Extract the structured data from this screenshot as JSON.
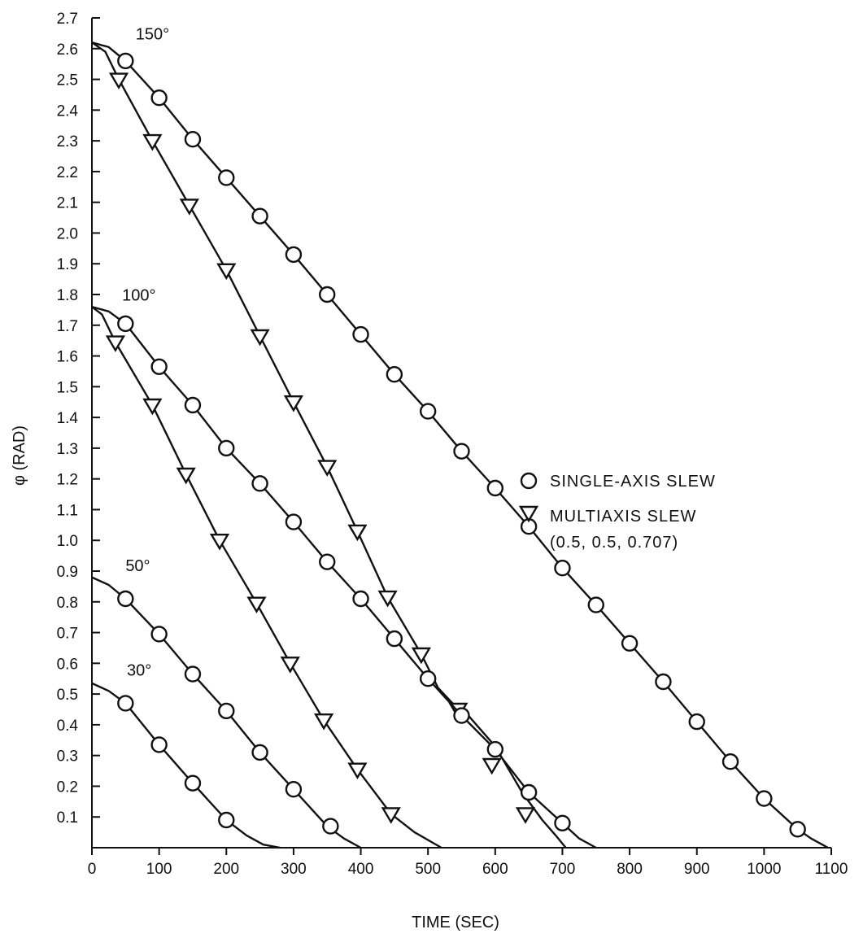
{
  "chart_data": {
    "type": "line",
    "title": "",
    "xlabel": "TIME (SEC)",
    "ylabel": "φ (RAD)",
    "xlim": [
      0,
      1100
    ],
    "ylim": [
      0,
      2.7
    ],
    "x_ticks": [
      "0",
      "100",
      "200",
      "300",
      "400",
      "500",
      "600",
      "700",
      "800",
      "900",
      "1000",
      "1100"
    ],
    "y_ticks": [
      "0.1",
      "0.2",
      "0.3",
      "0.4",
      "0.5",
      "0.6",
      "0.7",
      "0.8",
      "0.9",
      "1.0",
      "1.1",
      "1.2",
      "1.3",
      "1.4",
      "1.5",
      "1.6",
      "1.7",
      "1.8",
      "1.9",
      "2.0",
      "2.1",
      "2.2",
      "2.3",
      "2.4",
      "2.5",
      "2.6",
      "2.7"
    ],
    "legend": {
      "position": "right-middle",
      "single_label": "SINGLE-AXIS SLEW",
      "multi_label": "MULTIAXIS SLEW",
      "multi_sublabel": "(0.5, 0.5, 0.707)"
    },
    "series": [
      {
        "label": "150°",
        "label_at": [
          65,
          2.63
        ],
        "marker": "circle",
        "curve": [
          [
            0,
            2.62
          ],
          [
            25,
            2.605
          ],
          [
            50,
            2.56
          ],
          [
            100,
            2.44
          ],
          [
            150,
            2.305
          ],
          [
            200,
            2.18
          ],
          [
            250,
            2.055
          ],
          [
            300,
            1.93
          ],
          [
            350,
            1.8
          ],
          [
            400,
            1.67
          ],
          [
            450,
            1.54
          ],
          [
            500,
            1.42
          ],
          [
            550,
            1.29
          ],
          [
            600,
            1.17
          ],
          [
            650,
            1.045
          ],
          [
            700,
            0.91
          ],
          [
            750,
            0.79
          ],
          [
            800,
            0.665
          ],
          [
            850,
            0.54
          ],
          [
            900,
            0.41
          ],
          [
            950,
            0.28
          ],
          [
            1000,
            0.16
          ],
          [
            1050,
            0.06
          ],
          [
            1070,
            0.03
          ],
          [
            1095,
            0
          ]
        ],
        "points": [
          [
            50,
            2.56
          ],
          [
            100,
            2.44
          ],
          [
            150,
            2.305
          ],
          [
            200,
            2.18
          ],
          [
            250,
            2.055
          ],
          [
            300,
            1.93
          ],
          [
            350,
            1.8
          ],
          [
            400,
            1.67
          ],
          [
            450,
            1.54
          ],
          [
            500,
            1.42
          ],
          [
            550,
            1.29
          ],
          [
            600,
            1.17
          ],
          [
            650,
            1.045
          ],
          [
            700,
            0.91
          ],
          [
            750,
            0.79
          ],
          [
            800,
            0.665
          ],
          [
            850,
            0.54
          ],
          [
            900,
            0.41
          ],
          [
            950,
            0.28
          ],
          [
            1000,
            0.16
          ],
          [
            1050,
            0.06
          ]
        ]
      },
      {
        "label": "150°",
        "marker": "triangle",
        "curve": [
          [
            0,
            2.62
          ],
          [
            20,
            2.59
          ],
          [
            40,
            2.5
          ],
          [
            90,
            2.3
          ],
          [
            145,
            2.09
          ],
          [
            200,
            1.88
          ],
          [
            250,
            1.665
          ],
          [
            300,
            1.45
          ],
          [
            350,
            1.24
          ],
          [
            395,
            1.03
          ],
          [
            440,
            0.815
          ],
          [
            490,
            0.63
          ],
          [
            515,
            0.52
          ],
          [
            545,
            0.45
          ],
          [
            560,
            0.43
          ],
          [
            600,
            0.33
          ],
          [
            640,
            0.18
          ],
          [
            670,
            0.09
          ],
          [
            690,
            0.04
          ],
          [
            705,
            0
          ]
        ],
        "points": [
          [
            40,
            2.5
          ],
          [
            90,
            2.3
          ],
          [
            145,
            2.09
          ],
          [
            200,
            1.88
          ],
          [
            250,
            1.665
          ],
          [
            300,
            1.45
          ],
          [
            350,
            1.24
          ],
          [
            395,
            1.03
          ],
          [
            440,
            0.815
          ],
          [
            490,
            0.63
          ],
          [
            545,
            0.45
          ],
          [
            595,
            0.27
          ],
          [
            645,
            0.11
          ]
        ]
      },
      {
        "label": "100°",
        "label_at": [
          45,
          1.78
        ],
        "marker": "circle",
        "curve": [
          [
            0,
            1.76
          ],
          [
            25,
            1.745
          ],
          [
            50,
            1.705
          ],
          [
            100,
            1.565
          ],
          [
            150,
            1.44
          ],
          [
            200,
            1.3
          ],
          [
            250,
            1.185
          ],
          [
            300,
            1.06
          ],
          [
            350,
            0.93
          ],
          [
            400,
            0.81
          ],
          [
            450,
            0.68
          ],
          [
            500,
            0.55
          ],
          [
            550,
            0.43
          ],
          [
            600,
            0.32
          ],
          [
            650,
            0.18
          ],
          [
            700,
            0.08
          ],
          [
            725,
            0.03
          ],
          [
            750,
            0
          ]
        ],
        "points": [
          [
            50,
            1.705
          ],
          [
            100,
            1.565
          ],
          [
            150,
            1.44
          ],
          [
            200,
            1.3
          ],
          [
            250,
            1.185
          ],
          [
            300,
            1.06
          ],
          [
            350,
            0.93
          ],
          [
            400,
            0.81
          ],
          [
            450,
            0.68
          ],
          [
            500,
            0.55
          ],
          [
            550,
            0.43
          ],
          [
            600,
            0.32
          ],
          [
            650,
            0.18
          ],
          [
            700,
            0.08
          ]
        ]
      },
      {
        "label": "100°",
        "marker": "triangle",
        "curve": [
          [
            0,
            1.76
          ],
          [
            15,
            1.735
          ],
          [
            35,
            1.645
          ],
          [
            90,
            1.44
          ],
          [
            140,
            1.215
          ],
          [
            190,
            1.0
          ],
          [
            245,
            0.795
          ],
          [
            295,
            0.6
          ],
          [
            345,
            0.415
          ],
          [
            395,
            0.255
          ],
          [
            445,
            0.11
          ],
          [
            480,
            0.05
          ],
          [
            520,
            0
          ]
        ],
        "points": [
          [
            35,
            1.645
          ],
          [
            90,
            1.44
          ],
          [
            140,
            1.215
          ],
          [
            190,
            1.0
          ],
          [
            245,
            0.795
          ],
          [
            295,
            0.6
          ],
          [
            345,
            0.415
          ],
          [
            395,
            0.255
          ],
          [
            445,
            0.11
          ]
        ]
      },
      {
        "label": "50°",
        "label_at": [
          50,
          0.9
        ],
        "marker": "circle",
        "curve": [
          [
            0,
            0.88
          ],
          [
            25,
            0.855
          ],
          [
            50,
            0.81
          ],
          [
            100,
            0.695
          ],
          [
            150,
            0.565
          ],
          [
            200,
            0.445
          ],
          [
            250,
            0.31
          ],
          [
            300,
            0.19
          ],
          [
            350,
            0.07
          ],
          [
            375,
            0.03
          ],
          [
            400,
            0
          ]
        ],
        "points": [
          [
            50,
            0.81
          ],
          [
            100,
            0.695
          ],
          [
            150,
            0.565
          ],
          [
            200,
            0.445
          ],
          [
            250,
            0.31
          ],
          [
            300,
            0.19
          ],
          [
            355,
            0.07
          ]
        ]
      },
      {
        "label": "30°",
        "label_at": [
          52,
          0.56
        ],
        "marker": "circle",
        "curve": [
          [
            0,
            0.535
          ],
          [
            25,
            0.51
          ],
          [
            50,
            0.47
          ],
          [
            100,
            0.335
          ],
          [
            150,
            0.21
          ],
          [
            200,
            0.09
          ],
          [
            230,
            0.04
          ],
          [
            255,
            0.01
          ],
          [
            280,
            0
          ]
        ],
        "points": [
          [
            50,
            0.47
          ],
          [
            100,
            0.335
          ],
          [
            150,
            0.21
          ],
          [
            200,
            0.09
          ]
        ]
      }
    ]
  }
}
